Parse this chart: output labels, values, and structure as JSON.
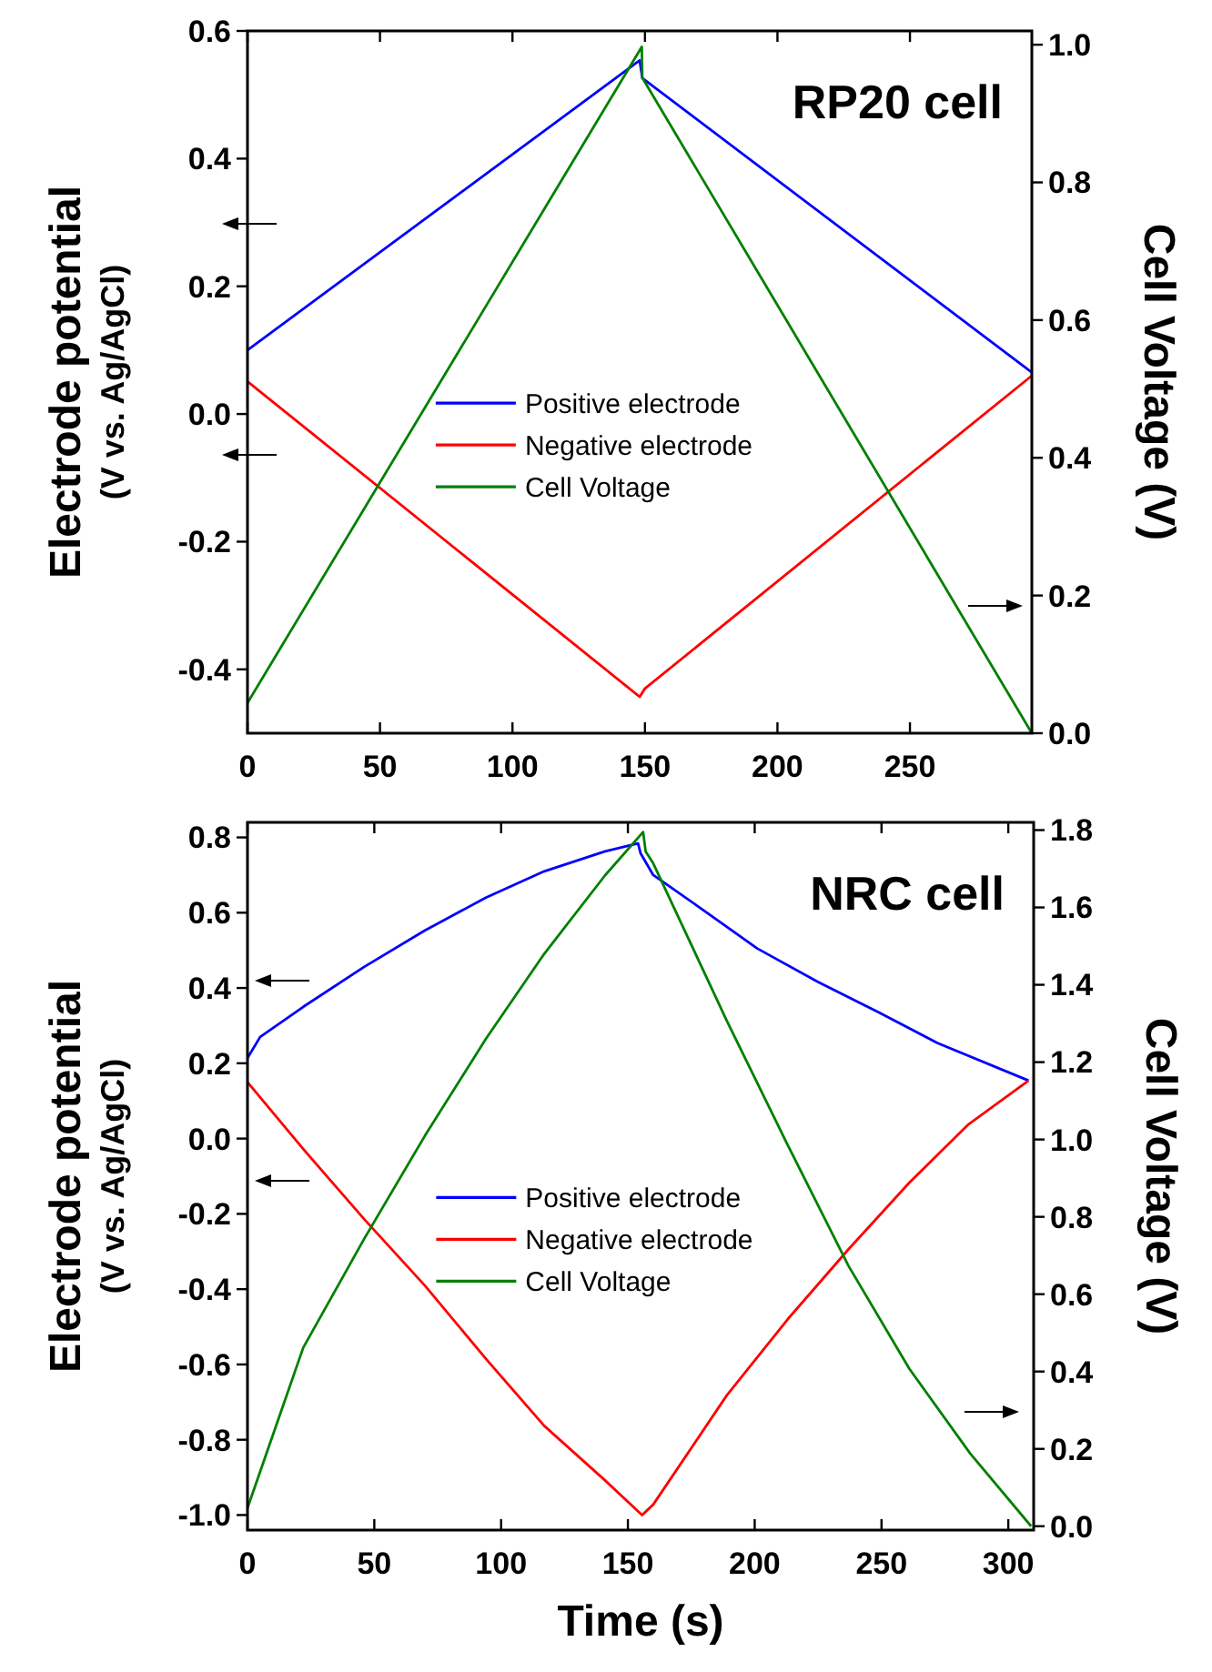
{
  "chart_data": [
    {
      "type": "line",
      "title": "RP20 cell",
      "ylabel": "Electrode potential\n(V vs. Ag/AgCl)",
      "y2label": "Cell Voltage (V)",
      "xlim": [
        0,
        296
      ],
      "xticks": [
        0,
        50,
        100,
        150,
        200,
        250
      ],
      "ylim": [
        -0.5,
        0.6
      ],
      "yticks": [
        {
          "value": -0.4,
          "label": "-0.4"
        },
        {
          "value": -0.2,
          "label": "-0.2"
        },
        {
          "value": 0,
          "label": "0.0"
        },
        {
          "value": 0.2,
          "label": "0.2"
        },
        {
          "value": 0.4,
          "label": "0.4"
        },
        {
          "value": 0.6,
          "label": "0.6"
        }
      ],
      "y2lim": [
        0,
        1.02
      ],
      "y2ticks": [
        {
          "value": 0,
          "label": "0.0"
        },
        {
          "value": 0.2,
          "label": "0.2"
        },
        {
          "value": 0.4,
          "label": "0.4"
        },
        {
          "value": 0.6,
          "label": "0.6"
        },
        {
          "value": 0.8,
          "label": "0.8"
        },
        {
          "value": 1,
          "label": "1.0"
        }
      ],
      "legend": "center",
      "grid": false,
      "series": [
        {
          "name": "Positive electrode",
          "color": "#0000ff",
          "x": [
            0,
            148,
            149,
            296
          ],
          "values": [
            0.1,
            0.554,
            0.526,
            0.065
          ]
        },
        {
          "name": "Negative electrode",
          "color": "#ff0000",
          "x": [
            0,
            148,
            150,
            296
          ],
          "values": [
            0.051,
            -0.443,
            -0.43,
            0.06
          ]
        },
        {
          "name": "Cell Voltage",
          "color": "#008000",
          "axis": "y2",
          "x": [
            0,
            148.8,
            149,
            296
          ],
          "values": [
            0.044,
            0.997,
            0.952,
            0.0
          ]
        }
      ]
    },
    {
      "type": "line",
      "title": "NRC cell",
      "xlabel": "Time (s)",
      "ylabel": "Electrode potential\n(V vs. Ag/AgCl)",
      "y2label": "Cell Voltage (V)",
      "xlim": [
        0,
        310
      ],
      "xticks": [
        0,
        50,
        100,
        150,
        200,
        250,
        300
      ],
      "ylim": [
        -1.04,
        0.84
      ],
      "yticks": [
        {
          "value": -1,
          "label": "-1.0"
        },
        {
          "value": -0.8,
          "label": "-0.8"
        },
        {
          "value": -0.6,
          "label": "-0.6"
        },
        {
          "value": -0.4,
          "label": "-0.4"
        },
        {
          "value": -0.2,
          "label": "-0.2"
        },
        {
          "value": 0,
          "label": "0.0"
        },
        {
          "value": 0.2,
          "label": "0.2"
        },
        {
          "value": 0.4,
          "label": "0.4"
        },
        {
          "value": 0.6,
          "label": "0.6"
        },
        {
          "value": 0.8,
          "label": "0.8"
        }
      ],
      "y2lim": [
        -0.01,
        1.82
      ],
      "y2ticks": [
        {
          "value": 0,
          "label": "0.0"
        },
        {
          "value": 0.2,
          "label": "0.2"
        },
        {
          "value": 0.4,
          "label": "0.4"
        },
        {
          "value": 0.6,
          "label": "0.6"
        },
        {
          "value": 0.8,
          "label": "0.8"
        },
        {
          "value": 1,
          "label": "1.0"
        },
        {
          "value": 1.2,
          "label": "1.2"
        },
        {
          "value": 1.4,
          "label": "1.4"
        },
        {
          "value": 1.6,
          "label": "1.6"
        },
        {
          "value": 1.8,
          "label": "1.8"
        }
      ],
      "legend": "center",
      "grid": false,
      "series": [
        {
          "name": "Positive electrode",
          "color": "#0000ff",
          "x": [
            0,
            5,
            22,
            46,
            70,
            94,
            117,
            141,
            154,
            155,
            160,
            177,
            201,
            225,
            249,
            272,
            308
          ],
          "values": [
            0.214,
            0.27,
            0.35,
            0.456,
            0.553,
            0.64,
            0.71,
            0.763,
            0.784,
            0.758,
            0.7,
            0.62,
            0.505,
            0.416,
            0.335,
            0.254,
            0.154
          ]
        },
        {
          "name": "Negative electrode",
          "color": "#ff0000",
          "x": [
            0,
            22,
            46,
            70,
            94,
            117,
            141,
            155.6,
            160,
            189,
            213,
            237,
            261,
            284,
            308
          ],
          "values": [
            0.15,
            -0.028,
            -0.214,
            -0.391,
            -0.585,
            -0.763,
            -0.908,
            -1.0,
            -0.972,
            -0.682,
            -0.48,
            -0.294,
            -0.117,
            0.036,
            0.154
          ]
        },
        {
          "name": "Cell Voltage",
          "color": "#008000",
          "axis": "y2",
          "x": [
            0,
            22,
            46,
            70,
            94,
            117,
            141,
            156,
            157,
            160,
            189,
            213,
            237,
            261,
            285,
            309
          ],
          "values": [
            0.047,
            0.462,
            0.743,
            1.01,
            1.26,
            1.48,
            1.683,
            1.795,
            1.745,
            1.714,
            1.307,
            0.986,
            0.673,
            0.407,
            0.188,
            0.0
          ]
        }
      ]
    }
  ]
}
